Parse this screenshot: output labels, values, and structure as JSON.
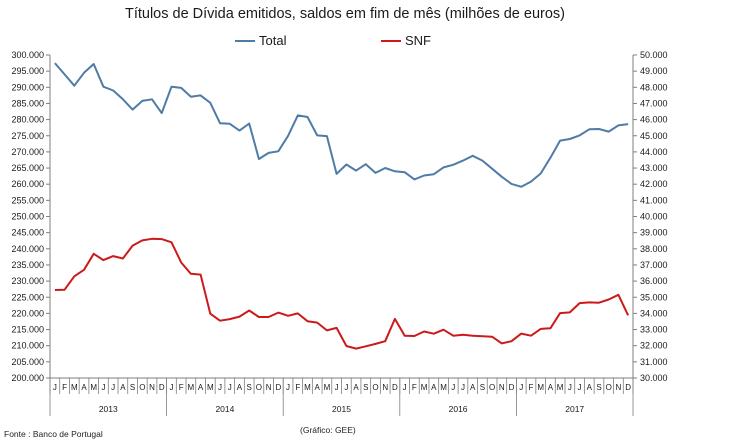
{
  "chart_data": {
    "type": "line",
    "title": "Títulos de Dívida emitidos, saldos em fim de mês  (milhões de euros)",
    "months": [
      "J",
      "F",
      "M",
      "A",
      "M",
      "J",
      "J",
      "A",
      "S",
      "O",
      "N",
      "D",
      "J",
      "F",
      "M",
      "A",
      "M",
      "J",
      "J",
      "A",
      "S",
      "O",
      "N",
      "D",
      "J",
      "F",
      "M",
      "A",
      "M",
      "J",
      "J",
      "A",
      "S",
      "O",
      "N",
      "D",
      "J",
      "F",
      "M",
      "A",
      "M",
      "J",
      "J",
      "A",
      "S",
      "O",
      "N",
      "D",
      "J",
      "F",
      "M",
      "A",
      "M",
      "J",
      "J",
      "A",
      "S",
      "O",
      "N",
      "D"
    ],
    "years": [
      "2013",
      "2014",
      "2015",
      "2016",
      "2017"
    ],
    "yleft": {
      "ticks": [
        "200.000",
        "205.000",
        "210.000",
        "215.000",
        "220.000",
        "225.000",
        "230.000",
        "235.000",
        "240.000",
        "245.000",
        "250.000",
        "255.000",
        "260.000",
        "265.000",
        "270.000",
        "275.000",
        "280.000",
        "285.000",
        "290.000",
        "295.000",
        "300.000"
      ],
      "min": 200000,
      "max": 300000
    },
    "yright": {
      "ticks": [
        "30.000",
        "31.000",
        "32.000",
        "33.000",
        "34.000",
        "35.000",
        "36.000",
        "37.000",
        "38.000",
        "39.000",
        "40.000",
        "41.000",
        "42.000",
        "43.000",
        "44.000",
        "45.000",
        "46.000",
        "47.000",
        "48.000",
        "49.000",
        "50.000"
      ],
      "min": 30000,
      "max": 50000
    },
    "series": [
      {
        "name": "Total",
        "axis": "left",
        "color": "#4f7ba7",
        "values": [
          297500,
          294000,
          290500,
          294500,
          297200,
          290200,
          289000,
          286300,
          283100,
          285800,
          286300,
          282000,
          290200,
          289800,
          287100,
          287500,
          285200,
          278900,
          278700,
          276600,
          278800,
          267800,
          269700,
          270200,
          275000,
          281300,
          280800,
          275100,
          274900,
          263200,
          266100,
          264200,
          266200,
          263500,
          265000,
          264000,
          263700,
          261500,
          262700,
          263100,
          265200,
          266000,
          267300,
          268800,
          267300,
          264800,
          262300,
          260100,
          259200,
          260800,
          263300,
          268200,
          273500,
          274000,
          275100,
          277000,
          277100,
          276300,
          278200,
          278600
        ]
      },
      {
        "name": "SNF",
        "axis": "right",
        "color": "#cc1a1a",
        "values": [
          35450,
          35470,
          36300,
          36700,
          37690,
          37300,
          37550,
          37400,
          38200,
          38520,
          38620,
          38600,
          38400,
          37150,
          36450,
          36400,
          33980,
          33550,
          33650,
          33800,
          34180,
          33780,
          33780,
          34050,
          33850,
          34000,
          33520,
          33430,
          32950,
          33100,
          31980,
          31820,
          31960,
          32110,
          32280,
          33660,
          32620,
          32600,
          32880,
          32740,
          32990,
          32620,
          32680,
          32620,
          32580,
          32560,
          32140,
          32280,
          32750,
          32620,
          33040,
          33080,
          34020,
          34060,
          34640,
          34680,
          34660,
          34860,
          35150,
          33880
        ]
      }
    ]
  },
  "footer": {
    "source": "Fonte : Banco de Portugal",
    "credit": "(Gráfico: GEE)"
  }
}
